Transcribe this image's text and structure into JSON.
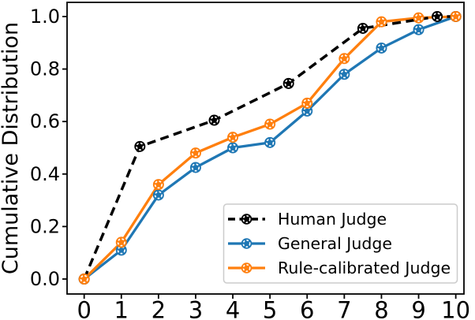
{
  "chart_data": {
    "type": "line",
    "title": "",
    "xlabel": "",
    "ylabel": "Cumulative Distribution",
    "grid": false,
    "legend_position": "lower right",
    "xlim": [
      -0.46,
      10.22
    ],
    "ylim": [
      -0.057,
      1.054
    ],
    "x_ticks": [
      0,
      1,
      2,
      3,
      4,
      5,
      6,
      7,
      8,
      9,
      10
    ],
    "x_tick_labels": [
      "0",
      "1",
      "2",
      "3",
      "4",
      "5",
      "6",
      "7",
      "8",
      "9",
      "10"
    ],
    "y_ticks": [
      0.0,
      0.2,
      0.4,
      0.6,
      0.8,
      1.0
    ],
    "y_tick_labels": [
      "0.0",
      "0.2",
      "0.4",
      "0.6",
      "0.8",
      "1.0"
    ],
    "series": [
      {
        "name": "Human Judge",
        "color": "#000000",
        "linestyle": "dashed",
        "marker": "circle",
        "x": [
          0,
          1.5,
          3.5,
          5.5,
          7.5,
          9.5,
          10
        ],
        "y": [
          0.0,
          0.505,
          0.605,
          0.745,
          0.955,
          1.0,
          1.0
        ]
      },
      {
        "name": "General Judge",
        "color": "#1f77b4",
        "linestyle": "solid",
        "marker": "circle",
        "x": [
          0,
          1,
          2,
          3,
          4,
          5,
          6,
          7,
          8,
          9,
          10
        ],
        "y": [
          0.0,
          0.11,
          0.32,
          0.425,
          0.5,
          0.52,
          0.64,
          0.78,
          0.88,
          0.95,
          1.0
        ]
      },
      {
        "name": "Rule-calibrated Judge",
        "color": "#ff7f0e",
        "linestyle": "solid",
        "marker": "circle",
        "x": [
          0,
          1,
          2,
          3,
          4,
          5,
          6,
          7,
          8,
          9,
          10
        ],
        "y": [
          0.0,
          0.14,
          0.36,
          0.48,
          0.54,
          0.59,
          0.67,
          0.84,
          0.98,
          0.995,
          1.0
        ]
      }
    ]
  }
}
